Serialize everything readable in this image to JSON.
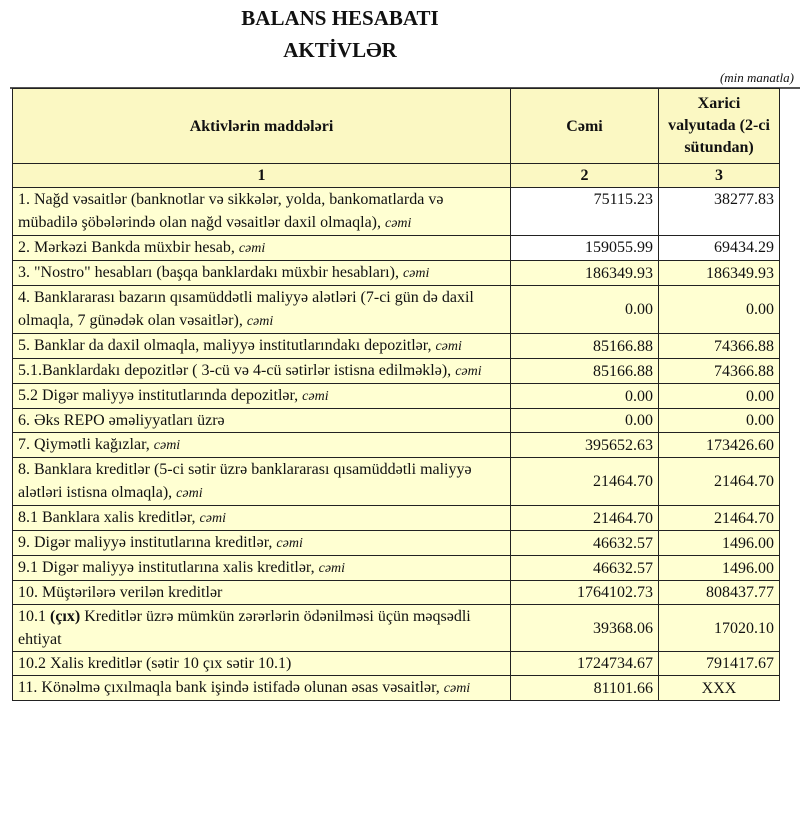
{
  "title": "BALANS HESABATI",
  "subtitle": "AKTİVLƏR",
  "unit": "(min manatla)",
  "columns": [
    "Aktivlərin   maddələri",
    "Cəmi",
    "Xarici valyutada (2-ci sütundan)"
  ],
  "column_numbers": [
    "1",
    "2",
    "3"
  ],
  "rows": [
    {
      "label": "1. Nağd vəsaitlər (banknotlar və sikkələr, yolda, bankomatlarda və mübadilə şöbələrində olan nağd vəsaitlər daxil olmaqla), ",
      "suffix": "cəmi",
      "total": "75115.23",
      "foreign": "38277.83"
    },
    {
      "label": "2. Mərkəzi Bankda müxbir hesab, ",
      "suffix": "cəmi",
      "total": "159055.99",
      "foreign": "69434.29"
    },
    {
      "label": "3. \"Nostro\" hesabları (başqa banklardakı müxbir hesabları), ",
      "suffix": "cəmi",
      "total": "186349.93",
      "foreign": "186349.93"
    },
    {
      "label": "4. Banklararası bazarın qısamüddətli maliyyə alətləri (7-ci gün də daxil olmaqla, 7 günədək olan vəsaitlər), ",
      "suffix": "cəmi",
      "total": "0.00",
      "foreign": "0.00"
    },
    {
      "label": "5. Banklar da daxil olmaqla, maliyyə institutlarındakı depozitlər, ",
      "suffix": "cəmi",
      "total": "85166.88",
      "foreign": "74366.88"
    },
    {
      "label": "5.1.Banklardakı depozitlər ( 3-cü və 4-cü sətirlər istisna edilməklə), ",
      "suffix": "cəmi",
      "total": "85166.88",
      "foreign": "74366.88"
    },
    {
      "label": "5.2 Digər maliyyə institutlarında depozitlər, ",
      "suffix": "cəmi",
      "total": "0.00",
      "foreign": "0.00"
    },
    {
      "label": "6. Əks REPO əməliyyatları üzrə",
      "suffix": "",
      "total": "0.00",
      "foreign": "0.00"
    },
    {
      "label": "7. Qiymətli kağızlar, ",
      "suffix": "cəmi",
      "total": "395652.63",
      "foreign": "173426.60"
    },
    {
      "label": "8. Banklara kreditlər (5-ci sətir üzrə banklararası qısamüddətli maliyyə alətləri istisna olmaqla), ",
      "suffix": "cəmi",
      "total": "21464.70",
      "foreign": "21464.70"
    },
    {
      "label": "8.1 Banklara xalis kreditlər, ",
      "suffix": "cəmi",
      "total": "21464.70",
      "foreign": "21464.70"
    },
    {
      "label": "9. Digər maliyyə institutlarına kreditlər, ",
      "suffix": "cəmi",
      "total": "46632.57",
      "foreign": "1496.00"
    },
    {
      "label": "9.1 Digər maliyyə institutlarına xalis kreditlər, ",
      "suffix": "cəmi",
      "total": "46632.57",
      "foreign": "1496.00"
    },
    {
      "label": "10. Müştərilərə verilən kreditlər",
      "suffix": "",
      "total": "1764102.73",
      "foreign": "808437.77"
    },
    {
      "prefix": "10.1 ",
      "bold": "(çıx)",
      "label": " Kreditlər üzrə mümkün zərərlərin ödənilməsi üçün məqsədli ehtiyat",
      "suffix": "",
      "total": "39368.06",
      "foreign": "17020.10"
    },
    {
      "label": "10.2 Xalis kreditlər (sətir 10 çıx sətir 10.1)",
      "suffix": "",
      "total": "1724734.67",
      "foreign": "791417.67"
    },
    {
      "label": "11. Könəlmə çıxılmaqla bank işində istifadə olunan əsas vəsaitlər, ",
      "suffix": "cəmi",
      "total": "81101.66",
      "foreign": "XXX"
    }
  ],
  "colors": {
    "cell_fill": "#ffffd2",
    "header_fill": "#fbf8c3"
  }
}
